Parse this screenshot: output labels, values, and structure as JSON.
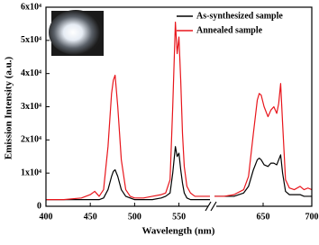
{
  "chart_data": {
    "type": "line",
    "xlabel": "Wavelength (nm)",
    "ylabel": "Emission Intensity (a.u.)",
    "ylim": [
      0,
      60000
    ],
    "yticks": [
      0,
      {
        "value": 10000,
        "label": "1x10⁴"
      },
      {
        "value": 20000,
        "label": "2x10⁴"
      },
      {
        "value": 30000,
        "label": "3x10⁴"
      },
      {
        "value": 40000,
        "label": "4x10⁴"
      },
      {
        "value": 50000,
        "label": "5x10⁴"
      },
      {
        "value": 60000,
        "label": "6x10⁴"
      }
    ],
    "x_segments": [
      {
        "xlim": [
          400,
          585
        ],
        "xticks": [
          400,
          450,
          500,
          550
        ]
      },
      {
        "xlim": [
          600,
          700
        ],
        "xticks": [
          650,
          700
        ]
      }
    ],
    "legend": "upper right",
    "x": [
      400,
      420,
      440,
      450,
      455,
      460,
      465,
      470,
      474,
      476,
      478,
      481,
      485,
      490,
      495,
      500,
      510,
      520,
      530,
      535,
      540,
      543,
      546,
      548,
      550,
      552,
      554,
      556,
      559,
      563,
      568,
      575,
      585,
      600,
      610,
      620,
      630,
      635,
      640,
      644,
      646,
      648,
      651,
      655,
      658,
      661,
      664,
      666,
      668,
      670,
      673,
      677,
      682,
      688,
      692,
      696,
      700
    ],
    "series": [
      {
        "name": "As-synthesized sample",
        "color": "#000000",
        "values": [
          2000,
          2000,
          2000,
          2000,
          2000,
          2000,
          2500,
          5000,
          9000,
          10500,
          11000,
          9000,
          5000,
          3000,
          2500,
          2000,
          2000,
          2000,
          2500,
          3000,
          4000,
          10000,
          18000,
          15000,
          16000,
          11000,
          7000,
          4000,
          2500,
          2000,
          2000,
          2000,
          2000,
          3000,
          3000,
          3000,
          4000,
          6000,
          11000,
          14000,
          14500,
          14000,
          12500,
          12000,
          13000,
          13000,
          12500,
          14000,
          15500,
          10000,
          4500,
          3500,
          3500,
          3500,
          3000,
          3000,
          3000
        ]
      },
      {
        "name": "Annealed sample",
        "color": "#e8151b",
        "values": [
          2000,
          2000,
          2500,
          3500,
          4500,
          3000,
          5000,
          18000,
          34000,
          38000,
          39500,
          30000,
          14000,
          5000,
          3000,
          2500,
          2500,
          3000,
          3500,
          4000,
          8000,
          30000,
          55500,
          46000,
          51000,
          38000,
          22000,
          12000,
          6000,
          4000,
          3000,
          3000,
          3000,
          3000,
          3000,
          3500,
          5000,
          9000,
          22000,
          32000,
          34000,
          33500,
          30000,
          27000,
          29000,
          30000,
          28000,
          31000,
          37000,
          25000,
          8000,
          5500,
          5000,
          6000,
          5000,
          5500,
          5000
        ]
      }
    ]
  }
}
